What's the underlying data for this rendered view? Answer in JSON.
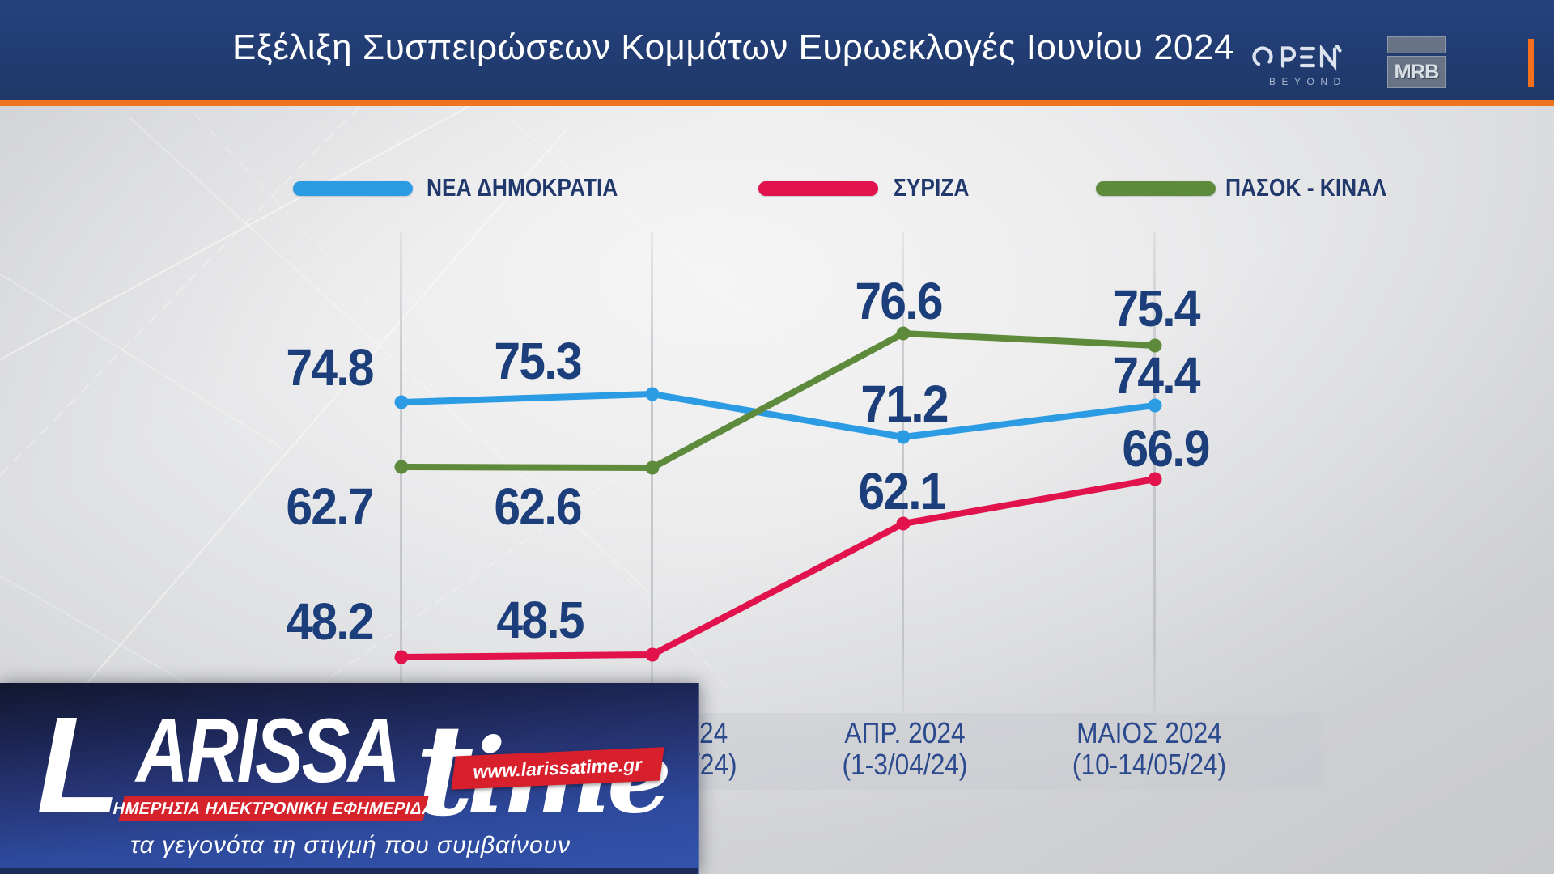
{
  "header": {
    "title": "Εξέλιξη Συσπειρώσεων Κομμάτων Ευρωεκλογές Ιουνίου 2024",
    "open_beyond_label": "BEYOND",
    "mrb_label": "MRB"
  },
  "legend": {
    "items": [
      {
        "label": "ΝΕΑ ΔΗΜΟΚΡΑΤΙΑ",
        "color": "#2b9ce4"
      },
      {
        "label": "ΣΥΡΙΖΑ",
        "color": "#e2124d"
      },
      {
        "label": "ΠΑΣΟΚ - ΚΙΝΑΛ",
        "color": "#5d8b3b"
      }
    ]
  },
  "chart_data": {
    "type": "line",
    "title": "Εξέλιξη Συσπειρώσεων Κομμάτων Ευρωεκλογές Ιουνίου 2024",
    "x_labels": [
      {
        "line1": "",
        "line2": ""
      },
      {
        "line1": "24",
        "line2": "/24)"
      },
      {
        "line1": "ΑΠΡ. 2024",
        "line2": "(1-3/04/24)"
      },
      {
        "line1": "ΜΑΙΟΣ 2024",
        "line2": "(10-14/05/24)"
      }
    ],
    "series": [
      {
        "name": "ΝΕΑ ΔΗΜΟΚΡΑΤΙΑ",
        "color": "#2b9ce4",
        "values": [
          74.8,
          75.3,
          71.2,
          74.4
        ]
      },
      {
        "name": "ΣΥΡΙΖΑ",
        "color": "#e2124d",
        "values": [
          48.2,
          48.5,
          62.1,
          66.9
        ]
      },
      {
        "name": "ΠΑΣΟΚ - ΚΙΝΑΛ",
        "color": "#5d8b3b",
        "values": [
          62.7,
          62.6,
          76.6,
          75.4
        ]
      }
    ],
    "grid": "vertical-only",
    "legend_position": "top",
    "accent_colors": {
      "header_navy": "#1f3869",
      "header_orange": "#ee7420",
      "value_text": "#1c3e7b"
    }
  },
  "watermark": {
    "brand_l": "L",
    "brand_arissa": "ARISSA",
    "brand_t": "t",
    "brand_ime": "ime",
    "url": "www.larissatime.gr",
    "subtitle": "ΗΜΕΡΗΣΙΑ ΗΛΕΚΤΡΟΝΙΚΗ ΕΦΗΜΕΡΙΔΑ",
    "slogan": "τα γεγονότα τη στιγμή που συμβαίνουν"
  }
}
